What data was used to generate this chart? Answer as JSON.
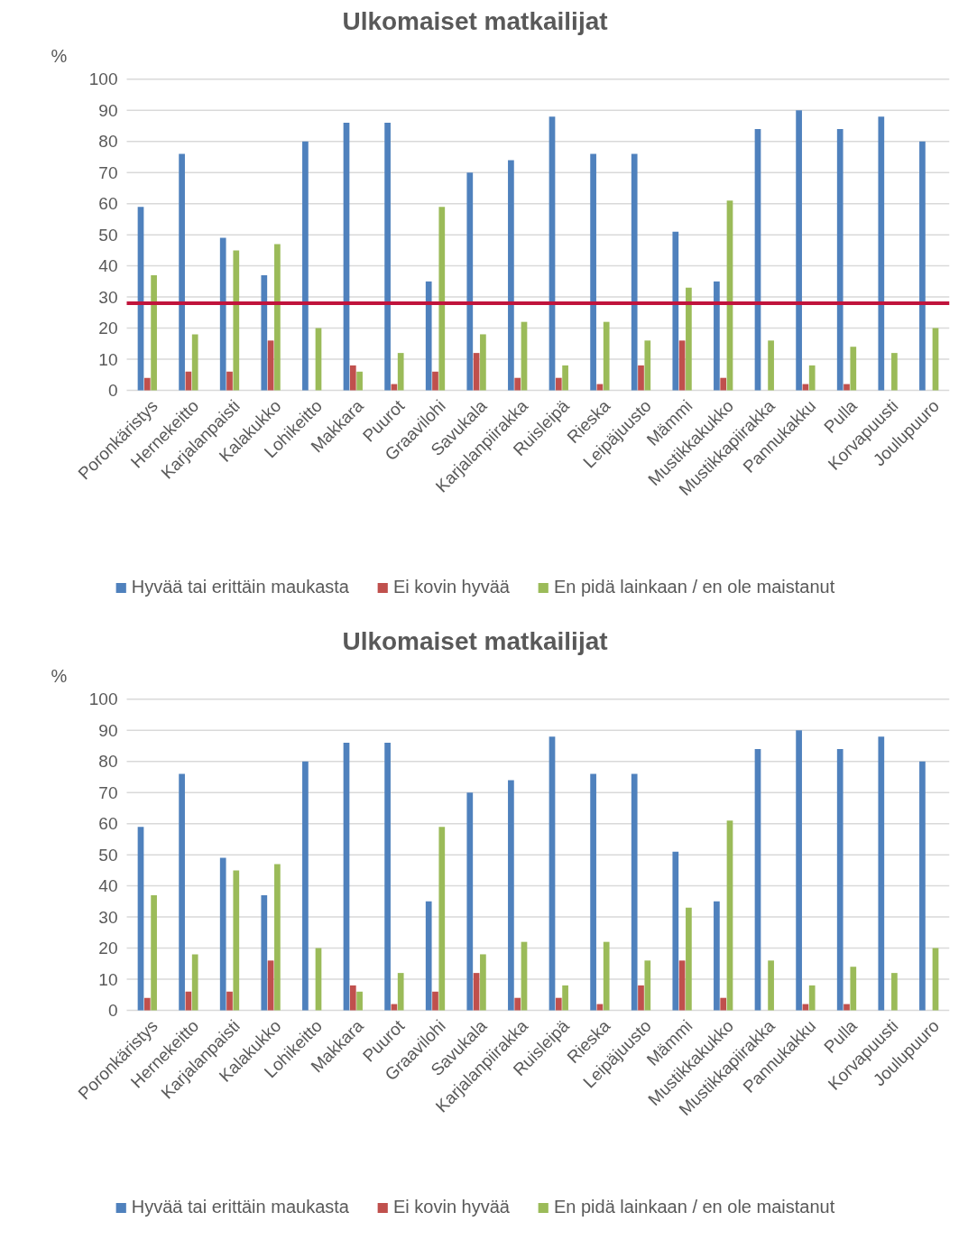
{
  "chart_data": [
    {
      "type": "bar",
      "title": "Ulkomaiset matkailijat",
      "ylabel": "%",
      "categories": [
        "Poronkäristys",
        "Hernekeitto",
        "Karjalanpaisti",
        "Kalakukko",
        "Lohikeitto",
        "Makkara",
        "Puurot",
        "Graavilohi",
        "Savukala",
        "Karjalanpiirakka",
        "Ruisleipä",
        "Rieska",
        "Leipäjuusto",
        "Mämmi",
        "Mustikkakukko",
        "Mustikkapiirakka",
        "Pannukakku",
        "Pulla",
        "Korvapuusti",
        "Joulupuuro"
      ],
      "series": [
        {
          "name": "Hyvää tai erittäin maukasta",
          "color": "#4f81bd",
          "values": [
            59,
            76,
            49,
            37,
            80,
            86,
            86,
            35,
            70,
            74,
            88,
            76,
            76,
            51,
            35,
            84,
            90,
            84,
            88,
            80
          ]
        },
        {
          "name": "Ei kovin hyvää",
          "color": "#c0504d",
          "values": [
            4,
            6,
            6,
            16,
            0,
            8,
            2,
            6,
            12,
            4,
            4,
            2,
            8,
            16,
            4,
            0,
            2,
            2,
            0,
            0
          ]
        },
        {
          "name": "En pidä lainkaan / en ole maistanut",
          "color": "#9bbb59",
          "values": [
            37,
            18,
            45,
            47,
            20,
            6,
            12,
            59,
            18,
            22,
            8,
            22,
            16,
            33,
            61,
            16,
            8,
            14,
            12,
            20
          ]
        }
      ],
      "ylim": [
        0,
        100
      ],
      "yticks": [
        0,
        10,
        20,
        30,
        40,
        50,
        60,
        70,
        80,
        90,
        100
      ],
      "grid": "y",
      "legend": "bottom",
      "ref_lines": [
        {
          "axis": "y",
          "value": 28,
          "color": "#c0143c"
        }
      ]
    },
    {
      "type": "bar",
      "title": "Ulkomaiset matkailijat",
      "ylabel": "%",
      "categories": [
        "Poronkäristys",
        "Hernekeitto",
        "Karjalanpaisti",
        "Kalakukko",
        "Lohikeitto",
        "Makkara",
        "Puurot",
        "Graavilohi",
        "Savukala",
        "Karjalanpiirakka",
        "Ruisleipä",
        "Rieska",
        "Leipäjuusto",
        "Mämmi",
        "Mustikkakukko",
        "Mustikkapiirakka",
        "Pannukakku",
        "Pulla",
        "Korvapuusti",
        "Joulupuuro"
      ],
      "series": [
        {
          "name": "Hyvää tai erittäin maukasta",
          "color": "#4f81bd",
          "values": [
            59,
            76,
            49,
            37,
            80,
            86,
            86,
            35,
            70,
            74,
            88,
            76,
            76,
            51,
            35,
            84,
            90,
            84,
            88,
            80
          ]
        },
        {
          "name": "Ei kovin hyvää",
          "color": "#c0504d",
          "values": [
            4,
            6,
            6,
            16,
            0,
            8,
            2,
            6,
            12,
            4,
            4,
            2,
            8,
            16,
            4,
            0,
            2,
            2,
            0,
            0
          ]
        },
        {
          "name": "En pidä lainkaan / en ole maistanut",
          "color": "#9bbb59",
          "values": [
            37,
            18,
            45,
            47,
            20,
            6,
            12,
            59,
            18,
            22,
            8,
            22,
            16,
            33,
            61,
            16,
            8,
            14,
            12,
            20
          ]
        }
      ],
      "ylim": [
        0,
        100
      ],
      "yticks": [
        0,
        10,
        20,
        30,
        40,
        50,
        60,
        70,
        80,
        90,
        100
      ],
      "grid": "y",
      "legend": "bottom"
    }
  ]
}
